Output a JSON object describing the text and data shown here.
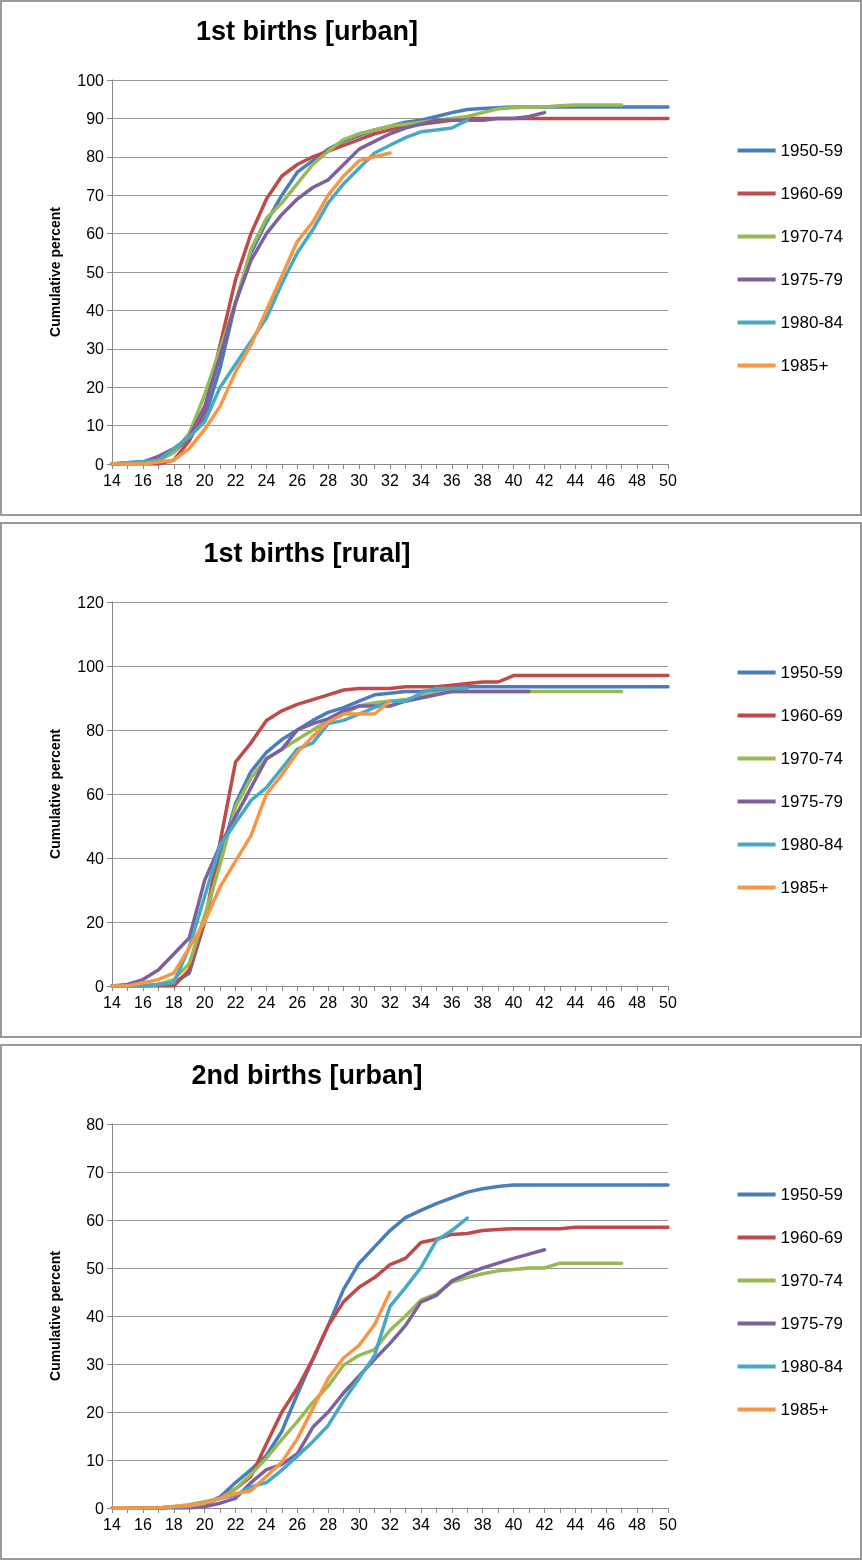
{
  "chart_data": [
    {
      "type": "line",
      "title": "1st births [urban]",
      "ylabel": "Cumulative percent",
      "categories": [
        "14",
        null,
        "16",
        null,
        "18",
        null,
        "20",
        null,
        "22",
        null,
        "24",
        null,
        "26",
        null,
        "28",
        null,
        "30",
        null,
        "32",
        null,
        "34",
        null,
        "36",
        null,
        "38",
        null,
        "40",
        null,
        "42",
        null,
        "44",
        null,
        "46",
        null,
        "48",
        null,
        "50"
      ],
      "ylim": [
        0,
        100
      ],
      "yticks": [
        0,
        10,
        20,
        30,
        40,
        50,
        60,
        70,
        80,
        90,
        100
      ],
      "grid": "y",
      "legend": "right",
      "marker": "none",
      "line_style": "solid",
      "series": [
        {
          "name": "1950-59",
          "color": "#4a7ebb",
          "values": [
            0,
            0.3,
            0.6,
            1,
            3,
            7,
            12,
            25,
            42,
            55,
            63,
            70,
            76,
            79,
            82,
            84,
            85.5,
            87,
            88,
            89,
            89.5,
            90.5,
            91.5,
            92.3,
            92.6,
            92.8,
            93,
            93,
            93,
            93,
            93,
            93,
            93,
            93,
            93,
            93,
            93
          ]
        },
        {
          "name": "1960-69",
          "color": "#be4b48",
          "values": [
            0,
            0,
            0,
            0,
            1,
            6,
            14,
            31,
            48,
            60,
            69,
            75,
            78,
            80,
            81.5,
            83,
            84.5,
            86,
            87,
            88,
            88.5,
            89,
            89.5,
            90,
            90,
            90,
            90,
            90,
            90,
            90,
            90,
            90,
            90,
            90,
            90,
            90,
            90
          ]
        },
        {
          "name": "1970-74",
          "color": "#98b954",
          "values": [
            0,
            0.2,
            0.5,
            1,
            3,
            8,
            18,
            30,
            42,
            56,
            64,
            68,
            73,
            78,
            81.5,
            84.5,
            86,
            87,
            88,
            88.5,
            89,
            89.5,
            90,
            90.5,
            91.5,
            92.5,
            92.8,
            93,
            93,
            93.3,
            93.5,
            93.5,
            93.5,
            93.5,
            null,
            null,
            null
          ]
        },
        {
          "name": "1975-79",
          "color": "#7d60a0",
          "values": [
            0,
            0.2,
            0.5,
            2,
            4,
            7,
            15,
            28,
            42,
            53,
            60,
            65,
            69,
            72,
            74,
            78,
            82,
            84,
            86,
            87.5,
            88.5,
            89.5,
            89.5,
            89.5,
            89.5,
            90,
            90,
            90.5,
            91.5,
            null,
            null,
            null,
            null,
            null,
            null,
            null,
            null
          ]
        },
        {
          "name": "1980-84",
          "color": "#46aac5",
          "values": [
            0,
            0.3,
            0.6,
            1,
            4,
            7,
            11,
            20,
            26,
            32,
            38,
            47,
            55,
            61,
            68,
            73,
            77,
            81,
            83,
            85,
            86.5,
            87,
            87.5,
            89.5,
            null,
            null,
            null,
            null,
            null,
            null,
            null,
            null,
            null,
            null,
            null,
            null,
            null
          ]
        },
        {
          "name": "1985+",
          "color": "#f79646",
          "values": [
            0,
            0,
            0,
            0.5,
            1,
            4,
            9,
            15,
            24,
            31,
            40,
            49,
            58,
            63,
            70,
            75,
            79,
            80,
            81,
            null,
            null,
            null,
            null,
            null,
            null,
            null,
            null,
            null,
            null,
            null,
            null,
            null,
            null,
            null,
            null,
            null,
            null
          ]
        }
      ]
    },
    {
      "type": "line",
      "title": "1st births [rural]",
      "ylabel": "Cumulative percent",
      "categories": [
        "14",
        null,
        "16",
        null,
        "18",
        null,
        "20",
        null,
        "22",
        null,
        "24",
        null,
        "26",
        null,
        "28",
        null,
        "30",
        null,
        "32",
        null,
        "34",
        null,
        "36",
        null,
        "38",
        null,
        "40",
        null,
        "42",
        null,
        "44",
        null,
        "46",
        null,
        "48",
        null,
        "50"
      ],
      "ylim": [
        0,
        120
      ],
      "yticks": [
        0,
        20,
        40,
        60,
        80,
        100,
        120
      ],
      "grid": "y",
      "legend": "right",
      "marker": "none",
      "line_style": "solid",
      "series": [
        {
          "name": "1950-59",
          "color": "#4a7ebb",
          "values": [
            0,
            0,
            0,
            0.5,
            1,
            4,
            20,
            40,
            57,
            67,
            73,
            77,
            80,
            83,
            85.5,
            87,
            89,
            91,
            91.5,
            92,
            92,
            92.5,
            93,
            93.5,
            93.5,
            93.5,
            93.5,
            93.5,
            93.5,
            93.5,
            93.5,
            93.5,
            93.5,
            93.5,
            93.5,
            93.5,
            93.5
          ]
        },
        {
          "name": "1960-69",
          "color": "#be4b48",
          "values": [
            0,
            0,
            0,
            0,
            0,
            5,
            20,
            45,
            70,
            76,
            83,
            86,
            88,
            89.5,
            91,
            92.5,
            93,
            93,
            93,
            93.5,
            93.5,
            93.5,
            94,
            94.5,
            95,
            95,
            97,
            97,
            97,
            97,
            97,
            97,
            97,
            97,
            97,
            97,
            97
          ]
        },
        {
          "name": "1970-74",
          "color": "#98b954",
          "values": [
            0,
            0,
            0,
            0.5,
            2,
            7,
            22,
            38,
            56,
            65,
            71,
            74,
            77,
            80,
            83,
            85,
            87.5,
            88.5,
            89,
            89.5,
            90.5,
            91.5,
            92,
            92,
            92,
            92,
            92,
            92,
            92,
            92,
            92,
            92,
            92,
            92,
            null,
            null,
            null
          ]
        },
        {
          "name": "1975-79",
          "color": "#7d60a0",
          "values": [
            0,
            0.5,
            2,
            5,
            10,
            15,
            33,
            44,
            53,
            62,
            71,
            74,
            80,
            82,
            83.5,
            86,
            87.5,
            87.5,
            87.5,
            89,
            90,
            91,
            92,
            92,
            92,
            92,
            92,
            92,
            null,
            null,
            null,
            null,
            null,
            null,
            null,
            null,
            null
          ]
        },
        {
          "name": "1980-84",
          "color": "#46aac5",
          "values": [
            0,
            0,
            0,
            0.5,
            1,
            12,
            28,
            44,
            51,
            58,
            62,
            68,
            74,
            76,
            82,
            83,
            85,
            87,
            89,
            89,
            91.5,
            93,
            93,
            93,
            null,
            null,
            null,
            null,
            null,
            null,
            null,
            null,
            null,
            null,
            null,
            null,
            null
          ]
        },
        {
          "name": "1985+",
          "color": "#f79646",
          "values": [
            0,
            0,
            1,
            2,
            4,
            12,
            20,
            31,
            39,
            47,
            60,
            66,
            73,
            78,
            82.5,
            85,
            85,
            85,
            89,
            null,
            null,
            null,
            null,
            null,
            null,
            null,
            null,
            null,
            null,
            null,
            null,
            null,
            null,
            null,
            null,
            null,
            null
          ]
        }
      ]
    },
    {
      "type": "line",
      "title": "2nd births [urban]",
      "ylabel": "Cumulative percent",
      "categories": [
        "14",
        null,
        "16",
        null,
        "18",
        null,
        "20",
        null,
        "22",
        null,
        "24",
        null,
        "26",
        null,
        "28",
        null,
        "30",
        null,
        "32",
        null,
        "34",
        null,
        "36",
        null,
        "38",
        null,
        "40",
        null,
        "42",
        null,
        "44",
        null,
        "46",
        null,
        "48",
        null,
        "50"
      ],
      "ylim": [
        0,
        80
      ],
      "yticks": [
        0,
        10,
        20,
        30,
        40,
        50,
        60,
        70,
        80
      ],
      "grid": "y",
      "legend": "right",
      "marker": "none",
      "line_style": "solid",
      "series": [
        {
          "name": "1950-59",
          "color": "#4a7ebb",
          "values": [
            null,
            null,
            0,
            0,
            0.2,
            0.3,
            0.8,
            2.3,
            5.3,
            8,
            11,
            16,
            23.7,
            31,
            38,
            45.6,
            51,
            54.4,
            57.8,
            60.5,
            62,
            63.4,
            64.6,
            65.8,
            66.5,
            67,
            67.3,
            67.3,
            67.3,
            67.3,
            67.3,
            67.3,
            67.3,
            67.3,
            67.3,
            67.3,
            67.3
          ]
        },
        {
          "name": "1960-69",
          "color": "#be4b48",
          "values": [
            null,
            null,
            0,
            0,
            0.2,
            0.4,
            1,
            2,
            4,
            6.6,
            13.4,
            20,
            25,
            31,
            38,
            43,
            46,
            48,
            50.7,
            52,
            55.3,
            56,
            57,
            57.2,
            57.8,
            58,
            58.2,
            58.2,
            58.2,
            58.2,
            58.5,
            58.5,
            58.5,
            58.5,
            58.5,
            58.5,
            58.5
          ]
        },
        {
          "name": "1970-74",
          "color": "#98b954",
          "values": [
            null,
            null,
            0,
            0,
            0.3,
            0.7,
            1.3,
            2,
            4,
            7,
            10.4,
            14.3,
            18,
            22,
            25.4,
            29.8,
            31.8,
            33,
            37,
            40,
            43.3,
            44.6,
            47,
            48,
            48.8,
            49.4,
            49.7,
            50,
            50,
            51,
            51,
            51,
            51,
            51,
            null,
            null,
            null
          ]
        },
        {
          "name": "1975-79",
          "color": "#7d60a0",
          "values": [
            0,
            0,
            0,
            0,
            0,
            0,
            0.3,
            1,
            2,
            5.3,
            8,
            9.1,
            11.3,
            16.8,
            20,
            24,
            27.5,
            31,
            34.3,
            38,
            42.9,
            44.3,
            47.3,
            48.8,
            50,
            51,
            52,
            52.9,
            53.8,
            null,
            null,
            null,
            null,
            null,
            null,
            null,
            null
          ]
        },
        {
          "name": "1980-84",
          "color": "#46aac5",
          "values": [
            null,
            null,
            null,
            0,
            0.2,
            0.3,
            1,
            2,
            2.7,
            4.4,
            5.3,
            7.9,
            10.8,
            13.8,
            17.2,
            22.4,
            27,
            31.8,
            42,
            45.9,
            50.1,
            55.7,
            57.8,
            60.4,
            null,
            null,
            null,
            null,
            null,
            null,
            null,
            null,
            null,
            null,
            null,
            null,
            null
          ]
        },
        {
          "name": "1985+",
          "color": "#f79646",
          "values": [
            0,
            0,
            0,
            0,
            0.3,
            0.5,
            1,
            2,
            3,
            3.6,
            6.6,
            9.6,
            14.4,
            20.7,
            27,
            31.3,
            33.9,
            38.2,
            45,
            null,
            null,
            null,
            null,
            null,
            null,
            null,
            null,
            null,
            null,
            null,
            null,
            null,
            null,
            null,
            null,
            null,
            null
          ]
        }
      ]
    }
  ]
}
